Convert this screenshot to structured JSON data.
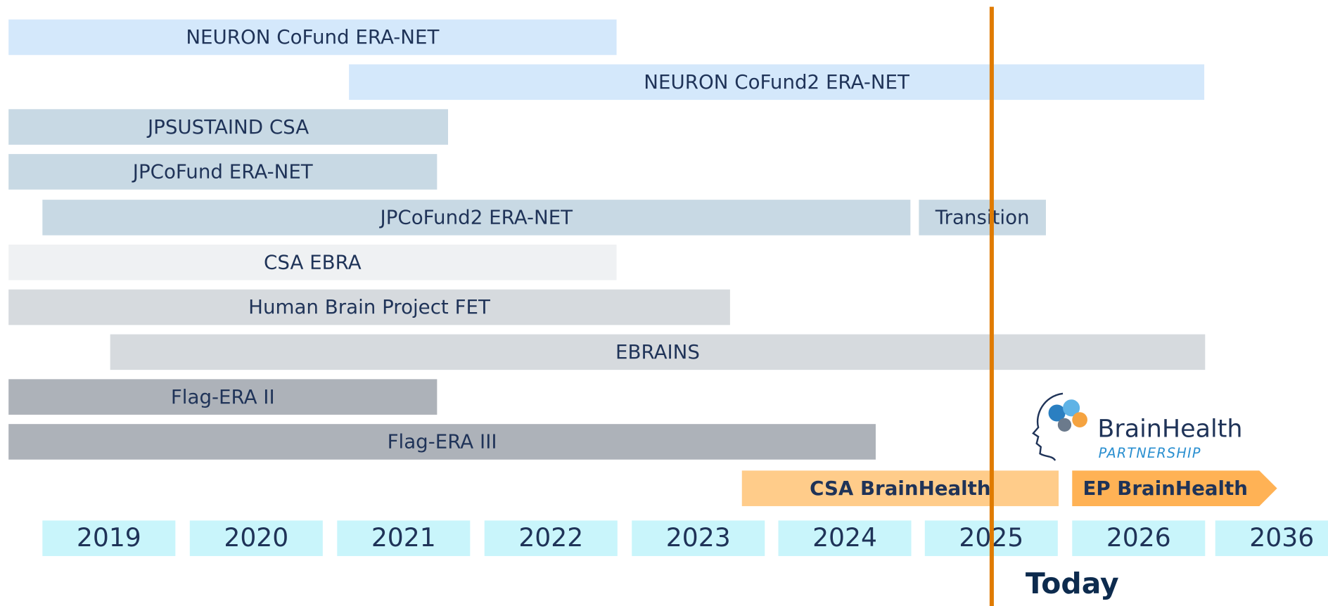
{
  "bars": [
    {
      "label": "NEURON CoFund ERA-NET"
    },
    {
      "label": "NEURON CoFund2 ERA-NET"
    },
    {
      "label": "JPSUSTAIND CSA"
    },
    {
      "label": "JPCoFund ERA-NET"
    },
    {
      "label": "JPCoFund2 ERA-NET"
    },
    {
      "label": "Transition"
    },
    {
      "label": "CSA EBRA"
    },
    {
      "label": "Human Brain Project FET"
    },
    {
      "label": "EBRAINS"
    },
    {
      "label": "Flag-ERA II"
    },
    {
      "label": "Flag-ERA III"
    }
  ],
  "phases": [
    {
      "label": "CSA BrainHealth"
    },
    {
      "label": "EP BrainHealth"
    }
  ],
  "years": [
    "2019",
    "2020",
    "2021",
    "2022",
    "2023",
    "2024",
    "2025",
    "2026",
    "2036"
  ],
  "today": "Today",
  "logo": {
    "name": "BrainHealth",
    "tagline": "PARTNERSHIP"
  }
}
